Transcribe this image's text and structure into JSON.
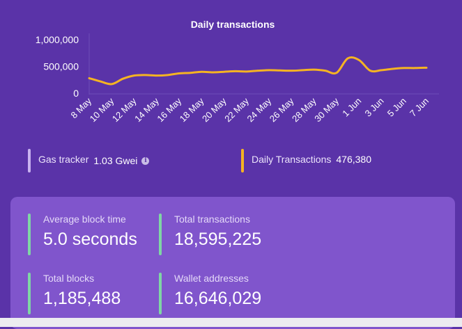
{
  "chart_data": {
    "type": "line",
    "title": "Daily transactions",
    "y_ticks": [
      "1,000,000",
      "500,000",
      "0"
    ],
    "ylim": [
      0,
      1000000
    ],
    "x_ticks": [
      "8 May",
      "10 May",
      "12 May",
      "14 May",
      "16 May",
      "18 May",
      "20 May",
      "22 May",
      "24 May",
      "26 May",
      "28 May",
      "30 May",
      "1 Jun",
      "3 Jun",
      "5 Jun",
      "7 Jun"
    ],
    "series": [
      {
        "color": "#f5b323",
        "x": [
          "8 May",
          "9 May",
          "10 May",
          "11 May",
          "12 May",
          "13 May",
          "14 May",
          "15 May",
          "16 May",
          "17 May",
          "18 May",
          "19 May",
          "20 May",
          "21 May",
          "22 May",
          "23 May",
          "24 May",
          "25 May",
          "26 May",
          "27 May",
          "28 May",
          "29 May",
          "30 May",
          "31 May",
          "1 Jun",
          "2 Jun",
          "3 Jun",
          "4 Jun",
          "5 Jun",
          "6 Jun",
          "7 Jun"
        ],
        "values": [
          280000,
          220000,
          170000,
          270000,
          330000,
          340000,
          330000,
          340000,
          370000,
          380000,
          400000,
          390000,
          400000,
          410000,
          405000,
          420000,
          430000,
          425000,
          420000,
          430000,
          440000,
          420000,
          380000,
          650000,
          620000,
          420000,
          430000,
          455000,
          470000,
          470000,
          476380
        ]
      }
    ]
  },
  "legend": {
    "gas_label": "Gas tracker",
    "gas_value": "1.03 Gwei",
    "gas_bar_color": "#c9b3f0",
    "tx_label": "Daily Transactions",
    "tx_value": "476,380",
    "tx_bar_color": "#f5b323"
  },
  "stats": {
    "avg_block_time_label": "Average block time",
    "avg_block_time_value": "5.0 seconds",
    "total_tx_label": "Total transactions",
    "total_tx_value": "18,595,225",
    "total_blocks_label": "Total blocks",
    "total_blocks_value": "1,185,488",
    "wallets_label": "Wallet addresses",
    "wallets_value": "16,646,029"
  }
}
